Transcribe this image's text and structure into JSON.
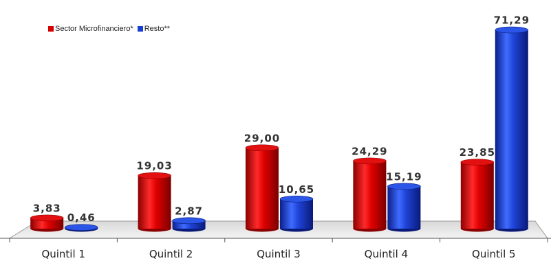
{
  "colors": {
    "series1": "#d40000",
    "series2": "#1a3fd0"
  },
  "legend": {
    "series1_label": "Sector Microfinanciero*",
    "series2_label": "Resto**"
  },
  "chart_data": {
    "type": "bar",
    "categories": [
      "Quintil 1",
      "Quintil 2",
      "Quintil 3",
      "Quintil 4",
      "Quintil 5"
    ],
    "series": [
      {
        "name": "Sector Microfinanciero*",
        "values": [
          3.83,
          19.03,
          29.0,
          24.29,
          23.85
        ],
        "labels": [
          "3,83",
          "19,03",
          "29,00",
          "24,29",
          "23,85"
        ]
      },
      {
        "name": "Resto**",
        "values": [
          0.46,
          2.87,
          10.65,
          15.19,
          71.29
        ],
        "labels": [
          "0,46",
          "2,87",
          "10,65",
          "15,19",
          "71,29"
        ]
      }
    ],
    "title": "",
    "xlabel": "",
    "ylabel": "",
    "ylim": [
      0,
      75
    ],
    "grid": false,
    "legend_position": "top-left"
  }
}
